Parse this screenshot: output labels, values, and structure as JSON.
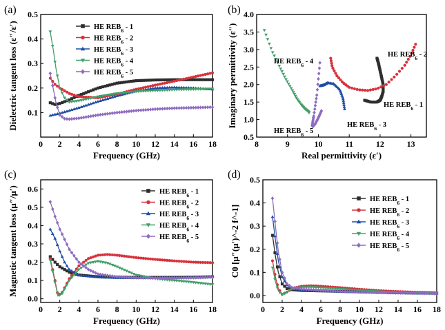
{
  "colors": {
    "s1": "#2e2e2e",
    "s2": "#d8323c",
    "s3": "#1f4ea3",
    "s4": "#43a06a",
    "s5": "#8e6cc0"
  },
  "chart_data": [
    {
      "id": "a",
      "panel_label": "(a)",
      "type": "line",
      "xlabel": "Frequency (GHz)",
      "ylabel": "Dielectric tangent loss (ε″/ε′)",
      "xlim": [
        0,
        18
      ],
      "ylim": [
        0.0,
        0.5
      ],
      "xticks": [
        0,
        2,
        4,
        6,
        8,
        10,
        12,
        14,
        16,
        18
      ],
      "yticks": [
        0.1,
        0.2,
        0.3,
        0.4,
        0.5
      ],
      "legend": "top-left",
      "series": [
        {
          "name": "HE REB6 - 1",
          "color_key": "s1",
          "marker": "square",
          "x": [
            1,
            1.5,
            2,
            3,
            4,
            6,
            8,
            10,
            12,
            14,
            16,
            18
          ],
          "y": [
            0.14,
            0.133,
            0.137,
            0.152,
            0.17,
            0.2,
            0.22,
            0.23,
            0.233,
            0.234,
            0.234,
            0.234
          ]
        },
        {
          "name": "HE REB6 - 2",
          "color_key": "s2",
          "marker": "circle",
          "x": [
            1,
            1.5,
            2,
            3,
            4,
            6,
            8,
            10,
            12,
            14,
            16,
            18
          ],
          "y": [
            0.24,
            0.215,
            0.2,
            0.178,
            0.165,
            0.16,
            0.175,
            0.195,
            0.212,
            0.228,
            0.245,
            0.262
          ]
        },
        {
          "name": "HE REB6 - 3",
          "color_key": "s3",
          "marker": "triangle-up",
          "x": [
            1,
            2,
            3,
            4,
            6,
            8,
            10,
            12,
            14,
            16,
            18
          ],
          "y": [
            0.088,
            0.097,
            0.108,
            0.12,
            0.145,
            0.168,
            0.188,
            0.2,
            0.203,
            0.2,
            0.195
          ]
        },
        {
          "name": "HE REB6 - 4",
          "color_key": "s4",
          "marker": "triangle-down",
          "x": [
            1,
            1.3,
            1.6,
            2,
            2.5,
            3,
            4,
            6,
            8,
            10,
            12,
            14,
            16,
            18
          ],
          "y": [
            0.43,
            0.36,
            0.28,
            0.2,
            0.16,
            0.143,
            0.148,
            0.165,
            0.178,
            0.186,
            0.19,
            0.193,
            0.195,
            0.197
          ]
        },
        {
          "name": "HE REB6 - 5",
          "color_key": "s5",
          "marker": "diamond",
          "x": [
            1,
            1.3,
            1.6,
            2,
            2.5,
            3,
            4,
            6,
            8,
            10,
            12,
            14,
            16,
            18
          ],
          "y": [
            0.26,
            0.2,
            0.14,
            0.09,
            0.075,
            0.073,
            0.077,
            0.09,
            0.1,
            0.108,
            0.114,
            0.118,
            0.12,
            0.122
          ]
        }
      ]
    },
    {
      "id": "b",
      "panel_label": "(b)",
      "type": "scatter",
      "xlabel": "Real permittivity (ε′)",
      "ylabel": "Imaginary permittivity (ε″)",
      "xlim": [
        8,
        13.5
      ],
      "ylim": [
        0.5,
        4.0
      ],
      "xticks": [
        8,
        9,
        10,
        11,
        12,
        13
      ],
      "yticks": [
        0.5,
        1.0,
        1.5,
        2.0,
        2.5,
        3.0,
        3.5,
        4.0
      ],
      "legend": "none",
      "series": [
        {
          "name": "HE REB6 - 1",
          "color_key": "s1",
          "marker": "square",
          "x": [
            11.9,
            11.95,
            12.0,
            12.05,
            12.1,
            12.1,
            12.05,
            12.0,
            11.9,
            11.7,
            11.5
          ],
          "y": [
            2.75,
            2.6,
            2.4,
            2.2,
            2.0,
            1.8,
            1.65,
            1.55,
            1.5,
            1.5,
            1.55
          ]
        },
        {
          "name": "HE REB6 - 2",
          "color_key": "s2",
          "marker": "circle",
          "x": [
            10.4,
            10.45,
            10.6,
            10.8,
            11.0,
            11.3,
            11.6,
            11.9,
            12.2,
            12.5,
            12.8,
            13.0,
            13.15
          ],
          "y": [
            2.75,
            2.5,
            2.25,
            2.05,
            1.92,
            1.85,
            1.83,
            1.88,
            2.0,
            2.25,
            2.55,
            2.85,
            3.15
          ]
        },
        {
          "name": "HE REB6 - 3",
          "color_key": "s3",
          "marker": "triangle-up",
          "x": [
            10.85,
            10.8,
            10.7,
            10.5,
            10.3,
            10.2,
            10.15,
            10.1,
            10.05
          ],
          "y": [
            1.3,
            1.6,
            1.85,
            2.02,
            2.05,
            2.0,
            1.98,
            1.97,
            1.96
          ]
        },
        {
          "name": "HE REB6 - 4",
          "color_key": "s4",
          "marker": "triangle-down",
          "x": [
            8.25,
            8.5,
            8.75,
            8.95,
            9.15,
            9.3,
            9.45,
            9.55,
            9.65,
            9.7
          ],
          "y": [
            3.55,
            2.95,
            2.5,
            2.15,
            1.85,
            1.6,
            1.42,
            1.32,
            1.25,
            1.2
          ]
        },
        {
          "name": "HE REB6 - 5",
          "color_key": "s5",
          "marker": "diamond",
          "x": [
            10.05,
            9.95,
            9.85,
            9.8,
            9.82,
            9.9,
            10.0,
            10.1
          ],
          "y": [
            2.62,
            1.7,
            1.1,
            0.85,
            0.8,
            0.88,
            1.05,
            1.25
          ]
        }
      ],
      "annotations": [
        {
          "series": "HE REB6 - 4",
          "text": "HE REB6 - 4"
        },
        {
          "series": "HE REB6 - 2",
          "text": "HE REB6 - 2"
        },
        {
          "series": "HE REB6 - 1",
          "text": "HE REB6 - 1"
        },
        {
          "series": "HE REB6 - 3",
          "text": "HE REB6 - 3"
        },
        {
          "series": "HE REB6 - 5",
          "text": "HE REB6 - 5"
        }
      ]
    },
    {
      "id": "c",
      "panel_label": "(c)",
      "type": "line",
      "xlabel": "Frequency (GHz)",
      "ylabel": "Magnetic tangent loss (μ″/μ′)",
      "xlim": [
        0,
        18
      ],
      "ylim": [
        -0.02,
        0.65
      ],
      "xticks": [
        0,
        2,
        4,
        6,
        8,
        10,
        12,
        14,
        16,
        18
      ],
      "yticks": [
        0.0,
        0.1,
        0.2,
        0.3,
        0.4,
        0.5,
        0.6
      ],
      "legend": "top-right",
      "series": [
        {
          "name": "HE REB6 - 1",
          "color_key": "s1",
          "marker": "square",
          "x": [
            1,
            1.5,
            2,
            3,
            4,
            6,
            8,
            10,
            12,
            14,
            16,
            18
          ],
          "y": [
            0.23,
            0.2,
            0.175,
            0.145,
            0.13,
            0.12,
            0.118,
            0.117,
            0.117,
            0.117,
            0.118,
            0.12
          ]
        },
        {
          "name": "HE REB6 - 2",
          "color_key": "s2",
          "marker": "circle",
          "x": [
            1,
            1.5,
            1.8,
            2.2,
            3,
            4,
            5,
            6,
            7,
            8,
            10,
            12,
            14,
            16,
            18
          ],
          "y": [
            0.22,
            0.1,
            0.02,
            0.03,
            0.11,
            0.18,
            0.22,
            0.238,
            0.242,
            0.238,
            0.225,
            0.215,
            0.207,
            0.2,
            0.197
          ]
        },
        {
          "name": "HE REB6 - 3",
          "color_key": "s3",
          "marker": "triangle-up",
          "x": [
            1,
            1.5,
            2,
            2.5,
            3,
            4,
            6,
            8,
            10,
            12,
            14,
            16,
            18
          ],
          "y": [
            0.38,
            0.33,
            0.26,
            0.2,
            0.16,
            0.13,
            0.118,
            0.115,
            0.115,
            0.116,
            0.117,
            0.118,
            0.12
          ]
        },
        {
          "name": "HE REB6 - 4",
          "color_key": "s4",
          "marker": "triangle-down",
          "x": [
            1,
            1.5,
            1.8,
            2.2,
            3,
            4,
            5,
            6,
            7,
            8,
            10,
            12,
            14,
            16,
            18
          ],
          "y": [
            0.21,
            0.09,
            0.015,
            0.025,
            0.1,
            0.16,
            0.195,
            0.205,
            0.195,
            0.175,
            0.13,
            0.11,
            0.1,
            0.09,
            0.078
          ]
        },
        {
          "name": "HE REB6 - 5",
          "color_key": "s5",
          "marker": "diamond",
          "x": [
            1,
            1.5,
            2,
            3,
            4,
            5,
            6,
            8,
            10,
            12,
            14,
            16,
            18
          ],
          "y": [
            0.53,
            0.45,
            0.38,
            0.27,
            0.2,
            0.16,
            0.135,
            0.12,
            0.115,
            0.113,
            0.113,
            0.115,
            0.118
          ]
        }
      ]
    },
    {
      "id": "d",
      "panel_label": "(d)",
      "type": "line",
      "xlabel": "Frequency (GHz)",
      "ylabel": "C0 [μ″(μ′)^-2 f^-1]",
      "xlim": [
        0,
        18
      ],
      "ylim": [
        -0.03,
        0.5
      ],
      "xticks": [
        0,
        2,
        4,
        6,
        8,
        10,
        12,
        14,
        16,
        18
      ],
      "yticks": [
        0.0,
        0.1,
        0.2,
        0.3,
        0.4,
        0.5
      ],
      "legend": "top-right",
      "series": [
        {
          "name": "HE REB6 - 1",
          "color_key": "s1",
          "marker": "square",
          "x": [
            1,
            1.3,
            1.6,
            2,
            2.5,
            3,
            4,
            6,
            8,
            10,
            12,
            14,
            16,
            18
          ],
          "y": [
            0.26,
            0.17,
            0.1,
            0.05,
            0.03,
            0.025,
            0.022,
            0.02,
            0.018,
            0.016,
            0.014,
            0.012,
            0.011,
            0.01
          ]
        },
        {
          "name": "HE REB6 - 2",
          "color_key": "s2",
          "marker": "circle",
          "x": [
            1,
            1.3,
            1.6,
            2,
            2.5,
            3,
            4,
            5,
            6,
            8,
            10,
            12,
            14,
            16,
            18
          ],
          "y": [
            0.15,
            0.08,
            0.03,
            0.005,
            0.015,
            0.03,
            0.04,
            0.042,
            0.04,
            0.034,
            0.027,
            0.021,
            0.017,
            0.014,
            0.012
          ]
        },
        {
          "name": "HE REB6 - 3",
          "color_key": "s3",
          "marker": "triangle-up",
          "x": [
            1,
            1.3,
            1.6,
            2,
            2.5,
            3,
            4,
            6,
            8,
            10,
            12,
            14,
            16,
            18
          ],
          "y": [
            0.34,
            0.24,
            0.15,
            0.08,
            0.045,
            0.03,
            0.025,
            0.02,
            0.017,
            0.015,
            0.013,
            0.011,
            0.01,
            0.009
          ]
        },
        {
          "name": "HE REB6 - 4",
          "color_key": "s4",
          "marker": "triangle-down",
          "x": [
            1,
            1.3,
            1.6,
            2,
            2.5,
            3,
            4,
            5,
            6,
            8,
            10,
            12,
            14,
            16,
            18
          ],
          "y": [
            0.12,
            0.06,
            0.02,
            0.003,
            0.015,
            0.028,
            0.035,
            0.036,
            0.034,
            0.028,
            0.022,
            0.017,
            0.013,
            0.01,
            0.008
          ]
        },
        {
          "name": "HE REB6 - 5",
          "color_key": "s5",
          "marker": "diamond",
          "x": [
            1,
            1.3,
            1.6,
            2,
            2.5,
            3,
            4,
            6,
            8,
            10,
            12,
            14,
            16,
            18
          ],
          "y": [
            0.42,
            0.3,
            0.19,
            0.1,
            0.05,
            0.035,
            0.028,
            0.022,
            0.018,
            0.015,
            0.013,
            0.011,
            0.01,
            0.009
          ]
        }
      ]
    }
  ]
}
